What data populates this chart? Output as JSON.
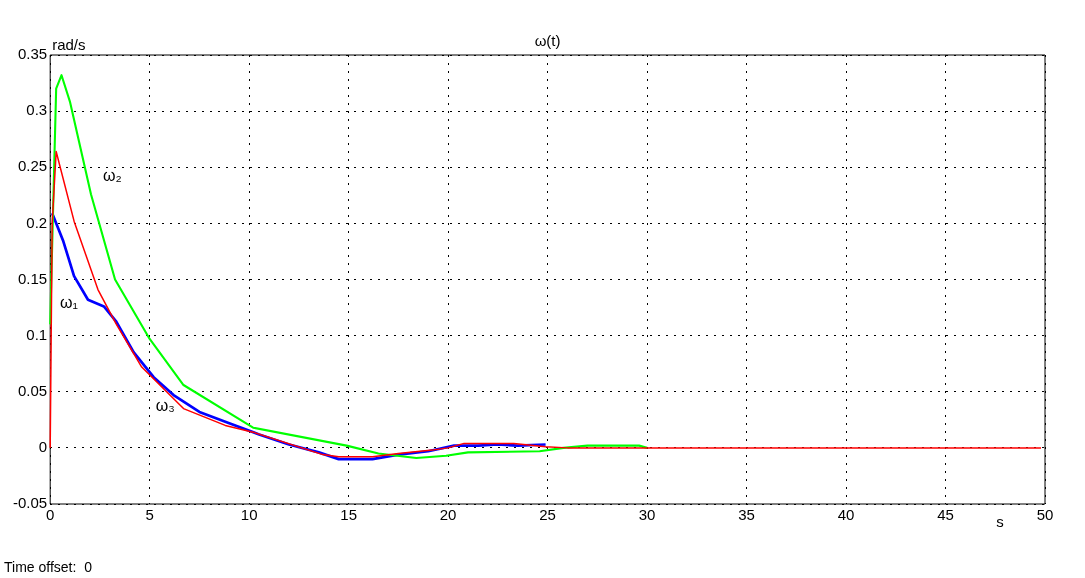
{
  "chart_data": {
    "type": "line",
    "title": "ω(t)",
    "xlabel": "s",
    "ylabel": "rad/s",
    "xlim": [
      0,
      50
    ],
    "xticks": [
      0,
      5,
      10,
      15,
      20,
      25,
      30,
      35,
      40,
      45,
      50
    ],
    "ylim": [
      -0.05,
      0.35
    ],
    "yticks": [
      -0.05,
      0,
      0.05,
      0.1,
      0.15,
      0.2,
      0.25,
      0.3,
      0.35
    ],
    "grid": true,
    "line_style": "solid",
    "marker": "none",
    "series": [
      {
        "name": "ω₁",
        "color": "#0000ff",
        "x": [
          0.1,
          0.66,
          1.2,
          1.9,
          2.7,
          3.3,
          4.2,
          5.2,
          6.2,
          7.5,
          9,
          10.5,
          12,
          13.5,
          14.5,
          16.2,
          17.5,
          19,
          20.3,
          21.5,
          22.5,
          23.5,
          24.9
        ],
        "values": [
          0.209,
          0.184,
          0.153,
          0.132,
          0.126,
          0.113,
          0.085,
          0.063,
          0.047,
          0.032,
          0.022,
          0.012,
          0.003,
          -0.004,
          -0.01,
          -0.01,
          -0.006,
          -0.003,
          0.002,
          0.002,
          0.003,
          0.002,
          0.003
        ]
      },
      {
        "name": "ω₂",
        "color": "#00ff00",
        "x": [
          0,
          0.3,
          0.57,
          1,
          2.05,
          3.26,
          5,
          6.7,
          10.2,
          14.9,
          16.5,
          18.4,
          19.9,
          21,
          24.6,
          25.8,
          27,
          29.6,
          30
        ],
        "values": [
          0.11,
          0.32,
          0.332,
          0.308,
          0.226,
          0.15,
          0.097,
          0.056,
          0.018,
          0.002,
          -0.005,
          -0.009,
          -0.007,
          -0.004,
          -0.003,
          0,
          0.002,
          0.002,
          0
        ]
      },
      {
        "name": "ω₃",
        "color": "#ff0000",
        "x": [
          0,
          0.05,
          0.1,
          0.3,
          1.2,
          2.4,
          3.3,
          4.6,
          6.7,
          8.8,
          10.2,
          13.7,
          14.5,
          16.2,
          17.5,
          19.2,
          20,
          20.8,
          23.3,
          24.9,
          26,
          49.8
        ],
        "values": [
          0,
          0.1,
          0.2,
          0.264,
          0.202,
          0.141,
          0.111,
          0.072,
          0.035,
          0.02,
          0.014,
          -0.006,
          -0.008,
          -0.008,
          -0.005,
          -0.002,
          0,
          0.004,
          0.004,
          0.001,
          0,
          0
        ]
      }
    ],
    "annotations": [
      "Time offset:  0"
    ]
  }
}
